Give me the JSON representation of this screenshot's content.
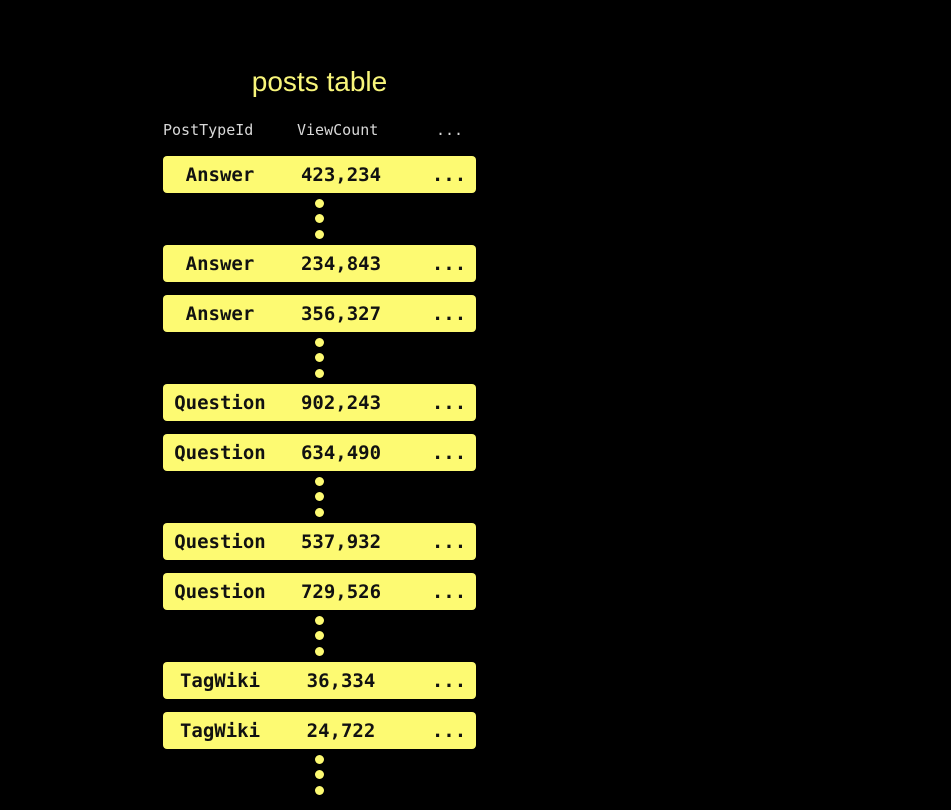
{
  "title": "posts table",
  "headers": [
    "PostTypeId",
    "ViewCount",
    "..."
  ],
  "rows": [
    {
      "type": "Answer",
      "views": "423,234",
      "more": "...",
      "gap_after": true
    },
    {
      "type": "Answer",
      "views": "234,843",
      "more": "...",
      "gap_after": false
    },
    {
      "type": "Answer",
      "views": "356,327",
      "more": "...",
      "gap_after": true
    },
    {
      "type": "Question",
      "views": "902,243",
      "more": "...",
      "gap_after": false
    },
    {
      "type": "Question",
      "views": "634,490",
      "more": "...",
      "gap_after": true
    },
    {
      "type": "Question",
      "views": "537,932",
      "more": "...",
      "gap_after": false
    },
    {
      "type": "Question",
      "views": "729,526",
      "more": "...",
      "gap_after": true
    },
    {
      "type": "TagWiki",
      "views": "36,334",
      "more": "...",
      "gap_after": false
    },
    {
      "type": "TagWiki",
      "views": "24,722",
      "more": "...",
      "gap_after": true
    }
  ],
  "colors": {
    "accent": "#fdfa72",
    "background": "#000000",
    "header_text": "#d8d8d8"
  }
}
